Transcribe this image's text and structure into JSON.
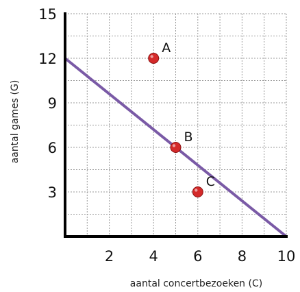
{
  "chart_data": {
    "type": "scatter",
    "title": "",
    "xlabel": "aantal concertbezoeken (C)",
    "ylabel": "aantal games (G)",
    "xlim": [
      0,
      10
    ],
    "ylim": [
      0,
      15
    ],
    "xticks": [
      2,
      4,
      6,
      8,
      10
    ],
    "yticks": [
      3,
      6,
      9,
      12,
      15
    ],
    "grid": true,
    "points": [
      {
        "label": "A",
        "x": 4,
        "y": 12
      },
      {
        "label": "B",
        "x": 5,
        "y": 6
      },
      {
        "label": "C",
        "x": 6,
        "y": 3
      }
    ],
    "line": {
      "x": [
        0,
        10
      ],
      "y": [
        12,
        0
      ],
      "color": "#7a5aa6"
    },
    "point_color": "#d42a2a"
  }
}
